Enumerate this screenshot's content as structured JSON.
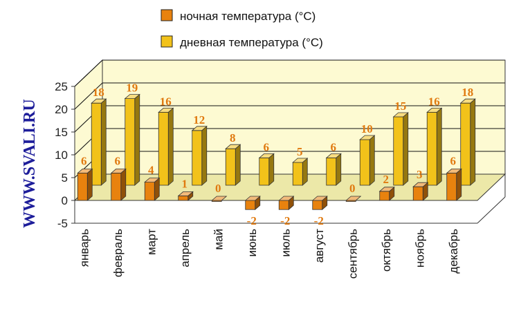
{
  "watermark": "WWW.SVALI.RU",
  "chart_data": {
    "type": "bar",
    "title": "",
    "xlabel": "",
    "ylabel": "",
    "categories": [
      "январь",
      "февраль",
      "март",
      "апрель",
      "май",
      "июнь",
      "июль",
      "август",
      "сентябрь",
      "октябрь",
      "ноябрь",
      "декабрь"
    ],
    "series": [
      {
        "name": "ночная температура (°C)",
        "values": [
          6,
          6,
          4,
          1,
          0,
          -2,
          -2,
          -2,
          0,
          2,
          3,
          6
        ],
        "color": "#e8820e"
      },
      {
        "name": "дневная температура (°C)",
        "values": [
          18,
          19,
          16,
          12,
          8,
          6,
          5,
          6,
          10,
          15,
          16,
          18
        ],
        "color": "#f2c21a"
      }
    ],
    "ylim": [
      -5,
      25
    ],
    "yticks": [
      "-5",
      "0",
      "5",
      "10",
      "15",
      "20",
      "25"
    ],
    "grid": true,
    "legend_position": "top",
    "colors": {
      "wall": "#fdfad2",
      "floor": "#ece8a8",
      "grid": "#111111",
      "label": "#e07a10"
    }
  }
}
